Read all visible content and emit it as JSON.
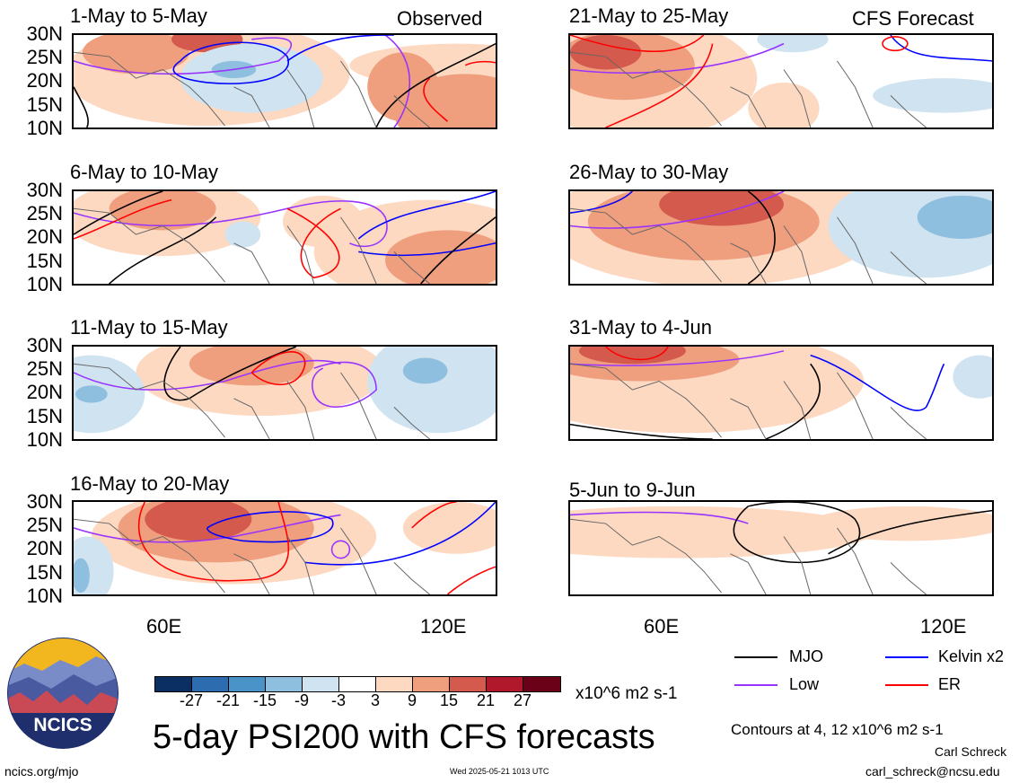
{
  "main_title": "5-day PSI200 with CFS forecasts",
  "observed_label": "Observed",
  "forecast_label": "CFS Forecast",
  "panels": {
    "observed": [
      "1-May to 5-May",
      "6-May to 10-May",
      "11-May to 15-May",
      "16-May to 20-May"
    ],
    "forecast": [
      "21-May to 25-May",
      "26-May to 30-May",
      "31-May to 4-Jun",
      "5-Jun to 9-Jun"
    ]
  },
  "lat_ticks": [
    "30N",
    "25N",
    "20N",
    "15N",
    "10N"
  ],
  "lon_ticks": [
    "60E",
    "120E"
  ],
  "colorbar": {
    "labels": [
      "-27",
      "-21",
      "-15",
      "-9",
      "-3",
      "3",
      "9",
      "15",
      "21",
      "27"
    ],
    "colors": [
      "#0b2f63",
      "#2e6cb0",
      "#4a93c8",
      "#8fbfde",
      "#cfe3f1",
      "#ffffff",
      "#fdd9c2",
      "#ef9e7e",
      "#d35a4d",
      "#b2182b",
      "#6b0019"
    ],
    "units": "x10^6 m2 s-1"
  },
  "legend": {
    "items": [
      {
        "label": "MJO",
        "color": "#000000"
      },
      {
        "label": "Kelvin x2",
        "color": "#0000ff"
      },
      {
        "label": "Low",
        "color": "#9933ff"
      },
      {
        "label": "ER",
        "color": "#ff0000"
      }
    ],
    "contours_note": "Contours at 4, 12 x10^6 m2 s-1"
  },
  "logo_text": "NCICS",
  "footer": {
    "url": "ncics.org/mjo",
    "timestamp": "Wed 2025-05-21 1013 UTC",
    "author": "Carl Schreck",
    "email": "carl_schreck@ncsu.edu"
  }
}
